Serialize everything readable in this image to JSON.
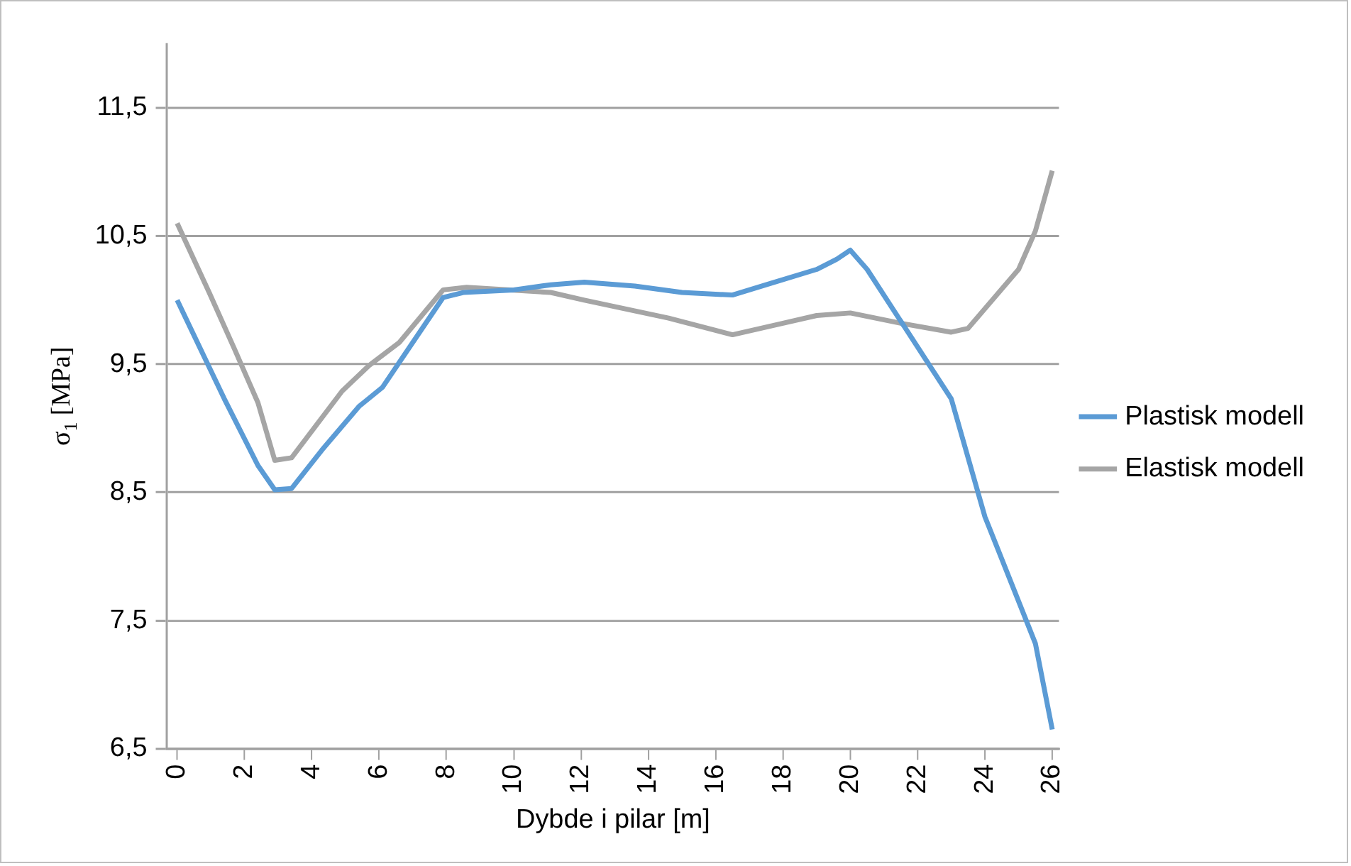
{
  "chart_data": {
    "type": "line",
    "xlabel": "Dybde i pilar [m]",
    "ylabel": "σ$_{1}$ [MPa]",
    "xlim": [
      -0.3,
      26.2
    ],
    "xticks": [
      0,
      2,
      4,
      6,
      8,
      10,
      12,
      14,
      16,
      18,
      20,
      22,
      24,
      26
    ],
    "ylim": [
      6.5,
      12
    ],
    "yticks": [
      {
        "value": 6.5,
        "label": "6,5"
      },
      {
        "value": 7.5,
        "label": "7,5"
      },
      {
        "value": 8.5,
        "label": "8,5"
      },
      {
        "value": 9.5,
        "label": "9,5"
      },
      {
        "value": 10.5,
        "label": "10,5"
      },
      {
        "value": 11.5,
        "label": "11,5"
      }
    ],
    "grid": "y",
    "legend": "right",
    "marker": "none",
    "series": [
      {
        "name": "Plastisk modell",
        "color": "#5b9bd5",
        "x": [
          0,
          1.4,
          2.4,
          2.9,
          3.4,
          4.3,
          5.4,
          6.1,
          7.9,
          8.5,
          10,
          11.1,
          12.1,
          13.6,
          15,
          16.5,
          17.5,
          19,
          19.6,
          20,
          20.5,
          23,
          24,
          25.5,
          26
        ],
        "values": [
          10.0,
          9.23,
          8.71,
          8.52,
          8.53,
          8.83,
          9.17,
          9.32,
          10.02,
          10.06,
          10.08,
          10.12,
          10.14,
          10.11,
          10.06,
          10.04,
          10.12,
          10.24,
          10.32,
          10.39,
          10.24,
          9.23,
          8.31,
          7.32,
          6.65
        ]
      },
      {
        "name": "Elastisk modell",
        "color": "#a5a5a5",
        "x": [
          0,
          0.95,
          1.7,
          2.4,
          2.9,
          3.4,
          4.9,
          5.7,
          6.6,
          7.9,
          8.6,
          11.1,
          12.1,
          14.6,
          16.5,
          18,
          19,
          20,
          21.5,
          23,
          23.5,
          25,
          25.5,
          26
        ],
        "values": [
          10.6,
          10.06,
          9.62,
          9.2,
          8.75,
          8.77,
          9.29,
          9.49,
          9.67,
          10.08,
          10.1,
          10.06,
          10.0,
          9.86,
          9.73,
          9.82,
          9.88,
          9.9,
          9.82,
          9.75,
          9.78,
          10.24,
          10.54,
          11.01
        ]
      }
    ]
  }
}
